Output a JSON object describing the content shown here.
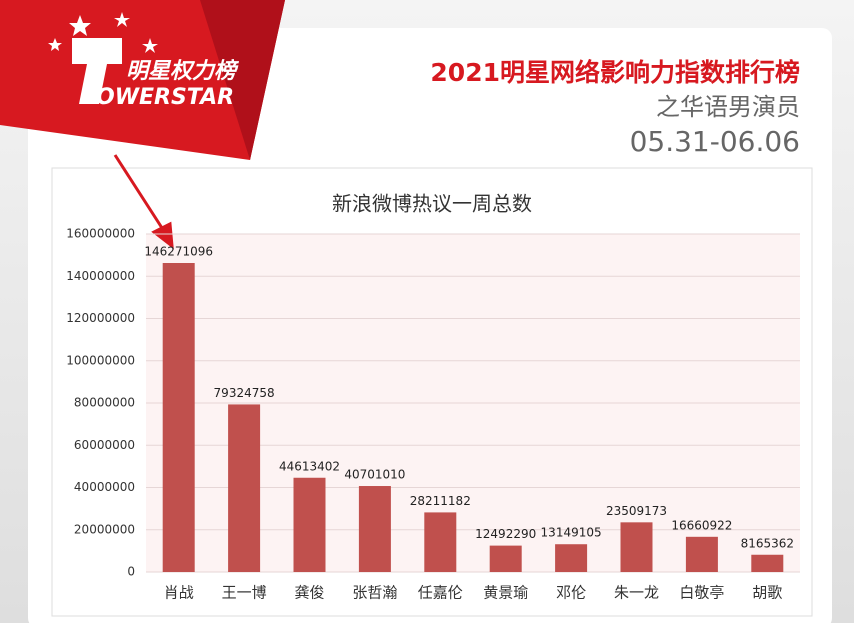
{
  "header": {
    "brand": "明星权力榜",
    "wordmark": "OWERSTAR",
    "title": "2021明星网络影响力指数排行榜",
    "subtitle": "之华语男演员",
    "date_range": "05.31-06.06"
  },
  "chart_data": {
    "type": "bar",
    "title": "新浪微博热议一周总数",
    "categories": [
      "肖战",
      "王一博",
      "龚俊",
      "张哲瀚",
      "任嘉伦",
      "黄景瑜",
      "邓伦",
      "朱一龙",
      "白敬亭",
      "胡歌"
    ],
    "values": [
      146271096,
      79324758,
      44613402,
      40701010,
      28211182,
      12492290,
      13149105,
      23509173,
      16660922,
      8165362
    ],
    "color": "#c0504d",
    "ylim": [
      0,
      160000000
    ],
    "yticks": [
      0,
      20000000,
      40000000,
      60000000,
      80000000,
      100000000,
      120000000,
      140000000,
      160000000
    ],
    "grid": true
  }
}
